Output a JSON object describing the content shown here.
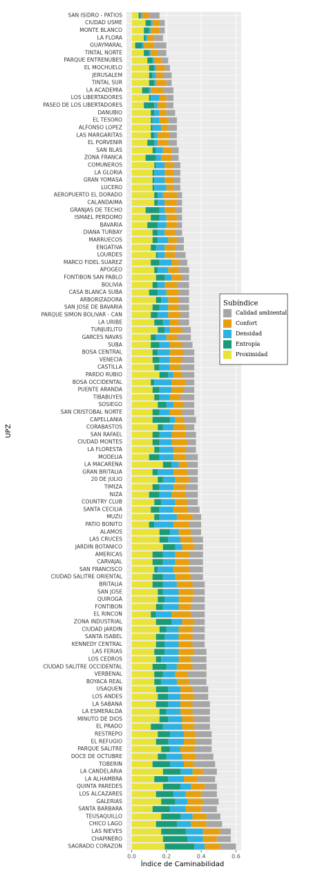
{
  "chart_data": {
    "type": "stacked_barh",
    "x_label": "Índice de Caminabilidad",
    "y_label": "UPZ",
    "legend_title": "Subíndice",
    "legend_position": "right",
    "grid": true,
    "xlim": [
      -0.03,
      0.63
    ],
    "xticks": [
      {
        "value": 0,
        "label": "0.0"
      },
      0.2,
      0.4,
      0.6
    ],
    "categories": [
      "SAN ISIDRO - PATIOS",
      "CIUDAD USME",
      "MONTE BLANCO",
      "LA FLORA",
      "GUAYMARAL",
      "TINTAL NORTE",
      "PARQUE ENTRENUBES",
      "EL MOCHUELO",
      "JERUSALEM",
      "TINTAL SUR",
      "LA ACADEMIA",
      "LOS LIBERTADORES",
      "PASEO DE LOS LIBERTADORES",
      "DANUBIO",
      "EL TESORO",
      "ALFONSO LOPEZ",
      "LAS MARGARITAS",
      "EL PORVENIR",
      "SAN BLAS",
      "ZONA FRANCA",
      "COMUNEROS",
      "LA GLORIA",
      "GRAN YOMASA",
      "LUCERO",
      "AEROPUERTO EL DORADO",
      "CALANDAIMA",
      "GRANJAS DE TECHO",
      "ISMAEL PERDOMO",
      "BAVARIA",
      "DIANA TURBAY",
      "MARRUECOS",
      "ENGATIVA",
      "LOURDES",
      "MARCO FIDEL SUAREZ",
      "APOGEO",
      "FONTIBON SAN PABLO",
      "BOLIVIA",
      "CASA BLANCA SUBA",
      "ARBORIZADORA",
      "SAN JOSE DE BAVARIA",
      "PARQUE SIMON BOLIVAR - CAN",
      "LA URIBE",
      "TUNJUELITO",
      "GARCES NAVAS",
      "SUBA",
      "BOSA CENTRAL",
      "VENECIA",
      "CASTILLA",
      "PARDO RUBIO",
      "BOSA OCCIDENTAL",
      "PUENTE ARANDA",
      "TIBABUYES",
      "SOSIEGO",
      "SAN CRISTOBAL NORTE",
      "CAPELLANIA",
      "CORABASTOS",
      "SAN RAFAEL",
      "CIUDAD MONTES",
      "LA FLORESTA",
      "MODELIA",
      "LA MACARENA",
      "GRAN BRITALIA",
      "20 DE JULIO",
      "TIMIZA",
      "NIZA",
      "COUNTRY CLUB",
      "SANTA CECILIA",
      "MUZU",
      "PATIO BONITO",
      "ALAMOS",
      "LAS CRUCES",
      "JARDIN BOTANICO",
      "AMERICAS",
      "CARVAJAL",
      "SAN FRANCISCO",
      "CIUDAD SALITRE ORIENTAL",
      "BRITALIA",
      "SAN JOSE",
      "QUIROGA",
      "FONTIBON",
      "EL RINCON",
      "ZONA INDUSTRIAL",
      "CIUDAD JARDIN",
      "SANTA ISABEL",
      "KENNEDY CENTRAL",
      "LAS FERIAS",
      "LOS CEDROS",
      "CIUDAD SALITRE OCCIDENTAL",
      "VERBENAL",
      "BOYACA REAL",
      "USAQUEN",
      "LOS ANDES",
      "LA SABANA",
      "LA ESMERALDA",
      "MINUTO DE DIOS",
      "EL PRADO",
      "RESTREPO",
      "EL REFUGIO",
      "PARQUE SALITRE",
      "DOCE DE OCTUBRE",
      "TOBERIN",
      "LA CANDELARIA",
      "LA ALHAMBRA",
      "QUINTA PAREDES",
      "LOS ALCAZARES",
      "GALERIAS",
      "SANTA BARBARA",
      "TEUSAQUILLO",
      "CHICO LAGO",
      "LAS NIEVES",
      "CHAPINERO",
      "SAGRADO CORAZON"
    ],
    "series": [
      {
        "name": "Proximidad",
        "color": "#e8e336",
        "values": [
          0.04,
          0.08,
          0.07,
          0.07,
          0.02,
          0.07,
          0.09,
          0.1,
          0.1,
          0.1,
          0.06,
          0.1,
          0.07,
          0.11,
          0.11,
          0.11,
          0.11,
          0.09,
          0.12,
          0.08,
          0.13,
          0.12,
          0.12,
          0.12,
          0.13,
          0.13,
          0.08,
          0.11,
          0.09,
          0.12,
          0.12,
          0.11,
          0.14,
          0.11,
          0.13,
          0.14,
          0.12,
          0.1,
          0.14,
          0.12,
          0.11,
          0.13,
          0.15,
          0.11,
          0.11,
          0.12,
          0.12,
          0.13,
          0.16,
          0.11,
          0.12,
          0.13,
          0.15,
          0.12,
          0.12,
          0.15,
          0.12,
          0.12,
          0.13,
          0.1,
          0.18,
          0.12,
          0.15,
          0.12,
          0.1,
          0.13,
          0.11,
          0.13,
          0.1,
          0.16,
          0.16,
          0.18,
          0.12,
          0.12,
          0.13,
          0.12,
          0.12,
          0.15,
          0.15,
          0.14,
          0.11,
          0.14,
          0.16,
          0.14,
          0.14,
          0.13,
          0.14,
          0.12,
          0.13,
          0.13,
          0.14,
          0.15,
          0.14,
          0.16,
          0.16,
          0.11,
          0.15,
          0.14,
          0.17,
          0.15,
          0.12,
          0.18,
          0.13,
          0.18,
          0.14,
          0.17,
          0.12,
          0.17,
          0.14,
          0.17,
          0.18,
          0.19
        ]
      },
      {
        "name": "Entropía",
        "color": "#1a9b76",
        "values": [
          0.01,
          0.03,
          0.03,
          0.01,
          0.04,
          0.03,
          0.03,
          0.03,
          0.02,
          0.03,
          0.04,
          0.01,
          0.06,
          0.02,
          0.01,
          0.01,
          0.02,
          0.04,
          0.02,
          0.06,
          0.01,
          0.01,
          0.01,
          0.01,
          0.02,
          0.02,
          0.08,
          0.05,
          0.06,
          0.03,
          0.03,
          0.03,
          0.01,
          0.05,
          0.02,
          0.05,
          0.03,
          0.05,
          0.03,
          0.04,
          0.04,
          0.05,
          0.04,
          0.03,
          0.05,
          0.03,
          0.04,
          0.03,
          0.05,
          0.02,
          0.04,
          0.03,
          0.05,
          0.04,
          0.1,
          0.03,
          0.04,
          0.04,
          0.03,
          0.06,
          0.05,
          0.03,
          0.03,
          0.04,
          0.06,
          0.04,
          0.05,
          0.03,
          0.03,
          0.06,
          0.05,
          0.07,
          0.06,
          0.06,
          0.02,
          0.06,
          0.06,
          0.03,
          0.04,
          0.04,
          0.03,
          0.09,
          0.04,
          0.05,
          0.05,
          0.06,
          0.03,
          0.08,
          0.05,
          0.04,
          0.07,
          0.06,
          0.07,
          0.04,
          0.05,
          0.07,
          0.07,
          0.07,
          0.05,
          0.05,
          0.1,
          0.1,
          0.08,
          0.1,
          0.1,
          0.08,
          0.1,
          0.11,
          0.12,
          0.14,
          0.14,
          0.17
        ]
      },
      {
        "name": "Densidad",
        "color": "#2eb2e2",
        "values": [
          0.01,
          0.01,
          0.01,
          0.01,
          0.01,
          0.01,
          0.01,
          0.01,
          0.02,
          0.01,
          0.01,
          0.05,
          0.02,
          0.03,
          0.04,
          0.05,
          0.02,
          0.02,
          0.04,
          0.03,
          0.05,
          0.06,
          0.06,
          0.07,
          0.03,
          0.04,
          0.03,
          0.04,
          0.05,
          0.04,
          0.06,
          0.05,
          0.04,
          0.07,
          0.06,
          0.04,
          0.04,
          0.05,
          0.04,
          0.05,
          0.06,
          0.04,
          0.03,
          0.06,
          0.06,
          0.07,
          0.06,
          0.06,
          0.03,
          0.1,
          0.07,
          0.06,
          0.04,
          0.06,
          0.03,
          0.06,
          0.07,
          0.07,
          0.08,
          0.08,
          0.04,
          0.09,
          0.07,
          0.08,
          0.07,
          0.08,
          0.08,
          0.1,
          0.11,
          0.05,
          0.07,
          0.04,
          0.07,
          0.07,
          0.09,
          0.07,
          0.08,
          0.09,
          0.08,
          0.09,
          0.09,
          0.06,
          0.07,
          0.08,
          0.08,
          0.08,
          0.1,
          0.06,
          0.07,
          0.09,
          0.07,
          0.07,
          0.07,
          0.08,
          0.08,
          0.11,
          0.08,
          0.09,
          0.06,
          0.09,
          0.08,
          0.07,
          0.09,
          0.06,
          0.07,
          0.07,
          0.09,
          0.07,
          0.08,
          0.1,
          0.09,
          0.06
        ]
      },
      {
        "name": "Confort",
        "color": "#e89f0e",
        "values": [
          0.04,
          0.04,
          0.05,
          0.04,
          0.06,
          0.04,
          0.04,
          0.05,
          0.04,
          0.06,
          0.07,
          0.04,
          0.05,
          0.04,
          0.05,
          0.04,
          0.07,
          0.06,
          0.05,
          0.06,
          0.05,
          0.05,
          0.05,
          0.04,
          0.08,
          0.07,
          0.06,
          0.06,
          0.06,
          0.06,
          0.05,
          0.06,
          0.06,
          0.04,
          0.06,
          0.06,
          0.07,
          0.07,
          0.06,
          0.06,
          0.07,
          0.05,
          0.07,
          0.06,
          0.07,
          0.08,
          0.07,
          0.06,
          0.05,
          0.08,
          0.07,
          0.06,
          0.06,
          0.07,
          0.05,
          0.07,
          0.08,
          0.09,
          0.07,
          0.07,
          0.05,
          0.08,
          0.08,
          0.07,
          0.08,
          0.07,
          0.08,
          0.09,
          0.09,
          0.07,
          0.07,
          0.07,
          0.08,
          0.08,
          0.09,
          0.09,
          0.09,
          0.09,
          0.08,
          0.07,
          0.11,
          0.07,
          0.08,
          0.08,
          0.08,
          0.09,
          0.07,
          0.09,
          0.07,
          0.07,
          0.07,
          0.08,
          0.07,
          0.07,
          0.07,
          0.07,
          0.07,
          0.07,
          0.08,
          0.08,
          0.06,
          0.06,
          0.08,
          0.08,
          0.09,
          0.09,
          0.09,
          0.08,
          0.09,
          0.1,
          0.08,
          0.09
        ]
      },
      {
        "name": "Calidad ambiental",
        "color": "#a6a6a6",
        "values": [
          0.06,
          0.03,
          0.03,
          0.05,
          0.07,
          0.05,
          0.04,
          0.03,
          0.05,
          0.03,
          0.06,
          0.04,
          0.04,
          0.05,
          0.05,
          0.05,
          0.04,
          0.05,
          0.04,
          0.04,
          0.04,
          0.04,
          0.04,
          0.04,
          0.03,
          0.03,
          0.04,
          0.03,
          0.03,
          0.04,
          0.04,
          0.05,
          0.06,
          0.05,
          0.06,
          0.04,
          0.07,
          0.06,
          0.06,
          0.06,
          0.05,
          0.06,
          0.05,
          0.08,
          0.06,
          0.06,
          0.07,
          0.08,
          0.07,
          0.05,
          0.06,
          0.08,
          0.06,
          0.07,
          0.07,
          0.05,
          0.06,
          0.05,
          0.06,
          0.07,
          0.06,
          0.06,
          0.05,
          0.07,
          0.07,
          0.06,
          0.07,
          0.05,
          0.07,
          0.06,
          0.06,
          0.05,
          0.08,
          0.08,
          0.08,
          0.07,
          0.07,
          0.06,
          0.07,
          0.08,
          0.08,
          0.06,
          0.07,
          0.07,
          0.07,
          0.07,
          0.09,
          0.08,
          0.11,
          0.1,
          0.09,
          0.08,
          0.1,
          0.1,
          0.09,
          0.09,
          0.09,
          0.09,
          0.1,
          0.1,
          0.12,
          0.08,
          0.1,
          0.07,
          0.09,
          0.09,
          0.09,
          0.08,
          0.09,
          0.06,
          0.08,
          0.09
        ]
      }
    ]
  }
}
